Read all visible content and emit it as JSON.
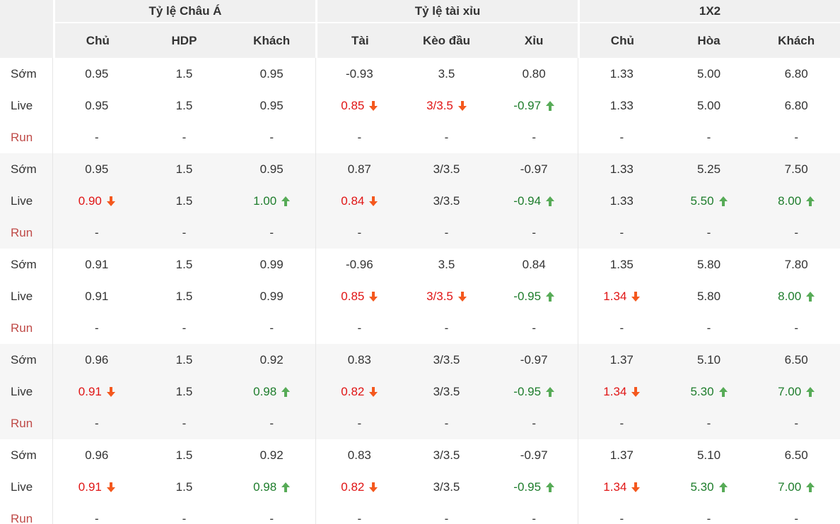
{
  "header": {
    "sections": [
      {
        "title": "Tỷ lệ Châu Á",
        "cols": [
          "Chủ",
          "HDP",
          "Khách"
        ]
      },
      {
        "title": "Tỷ lệ tài xỉu",
        "cols": [
          "Tài",
          "Kèo đầu",
          "Xỉu"
        ]
      },
      {
        "title": "1X2",
        "cols": [
          "Chủ",
          "Hòa",
          "Khách"
        ]
      }
    ]
  },
  "colors": {
    "header_bg": "#f0f0f0",
    "stripe_bg": "#f6f6f6",
    "text": "#333333",
    "red": "#e01515",
    "red_arrow": "#f4581e",
    "green": "#1e7d2c",
    "green_arrow": "#57ab57",
    "run_label": "#bf4a47",
    "divider": "#e6e6e6"
  },
  "groups": [
    {
      "rows": [
        {
          "label": "Sớm",
          "cells": [
            {
              "v": "0.95"
            },
            {
              "v": "1.5"
            },
            {
              "v": "0.95"
            },
            {
              "v": "-0.93"
            },
            {
              "v": "3.5"
            },
            {
              "v": "0.80"
            },
            {
              "v": "1.33"
            },
            {
              "v": "5.00"
            },
            {
              "v": "6.80"
            }
          ]
        },
        {
          "label": "Live",
          "cells": [
            {
              "v": "0.95"
            },
            {
              "v": "1.5"
            },
            {
              "v": "0.95"
            },
            {
              "v": "0.85",
              "c": "red",
              "a": "down"
            },
            {
              "v": "3/3.5",
              "c": "red",
              "a": "down"
            },
            {
              "v": "-0.97",
              "c": "green",
              "a": "up"
            },
            {
              "v": "1.33"
            },
            {
              "v": "5.00"
            },
            {
              "v": "6.80"
            }
          ]
        },
        {
          "label": "Run",
          "cells": [
            {
              "v": "-"
            },
            {
              "v": "-"
            },
            {
              "v": "-"
            },
            {
              "v": "-"
            },
            {
              "v": "-"
            },
            {
              "v": "-"
            },
            {
              "v": "-"
            },
            {
              "v": "-"
            },
            {
              "v": "-"
            }
          ]
        }
      ]
    },
    {
      "rows": [
        {
          "label": "Sớm",
          "cells": [
            {
              "v": "0.95"
            },
            {
              "v": "1.5"
            },
            {
              "v": "0.95"
            },
            {
              "v": "0.87"
            },
            {
              "v": "3/3.5"
            },
            {
              "v": "-0.97"
            },
            {
              "v": "1.33"
            },
            {
              "v": "5.25"
            },
            {
              "v": "7.50"
            }
          ]
        },
        {
          "label": "Live",
          "cells": [
            {
              "v": "0.90",
              "c": "red",
              "a": "down"
            },
            {
              "v": "1.5"
            },
            {
              "v": "1.00",
              "c": "green",
              "a": "up"
            },
            {
              "v": "0.84",
              "c": "red",
              "a": "down"
            },
            {
              "v": "3/3.5"
            },
            {
              "v": "-0.94",
              "c": "green",
              "a": "up"
            },
            {
              "v": "1.33"
            },
            {
              "v": "5.50",
              "c": "green",
              "a": "up"
            },
            {
              "v": "8.00",
              "c": "green",
              "a": "up"
            }
          ]
        },
        {
          "label": "Run",
          "cells": [
            {
              "v": "-"
            },
            {
              "v": "-"
            },
            {
              "v": "-"
            },
            {
              "v": "-"
            },
            {
              "v": "-"
            },
            {
              "v": "-"
            },
            {
              "v": "-"
            },
            {
              "v": "-"
            },
            {
              "v": "-"
            }
          ]
        }
      ]
    },
    {
      "rows": [
        {
          "label": "Sớm",
          "cells": [
            {
              "v": "0.91"
            },
            {
              "v": "1.5"
            },
            {
              "v": "0.99"
            },
            {
              "v": "-0.96"
            },
            {
              "v": "3.5"
            },
            {
              "v": "0.84"
            },
            {
              "v": "1.35"
            },
            {
              "v": "5.80"
            },
            {
              "v": "7.80"
            }
          ]
        },
        {
          "label": "Live",
          "cells": [
            {
              "v": "0.91"
            },
            {
              "v": "1.5"
            },
            {
              "v": "0.99"
            },
            {
              "v": "0.85",
              "c": "red",
              "a": "down"
            },
            {
              "v": "3/3.5",
              "c": "red",
              "a": "down"
            },
            {
              "v": "-0.95",
              "c": "green",
              "a": "up"
            },
            {
              "v": "1.34",
              "c": "red",
              "a": "down"
            },
            {
              "v": "5.80"
            },
            {
              "v": "8.00",
              "c": "green",
              "a": "up"
            }
          ]
        },
        {
          "label": "Run",
          "cells": [
            {
              "v": "-"
            },
            {
              "v": "-"
            },
            {
              "v": "-"
            },
            {
              "v": "-"
            },
            {
              "v": "-"
            },
            {
              "v": "-"
            },
            {
              "v": "-"
            },
            {
              "v": "-"
            },
            {
              "v": "-"
            }
          ]
        }
      ]
    },
    {
      "rows": [
        {
          "label": "Sớm",
          "cells": [
            {
              "v": "0.96"
            },
            {
              "v": "1.5"
            },
            {
              "v": "0.92"
            },
            {
              "v": "0.83"
            },
            {
              "v": "3/3.5"
            },
            {
              "v": "-0.97"
            },
            {
              "v": "1.37"
            },
            {
              "v": "5.10"
            },
            {
              "v": "6.50"
            }
          ]
        },
        {
          "label": "Live",
          "cells": [
            {
              "v": "0.91",
              "c": "red",
              "a": "down"
            },
            {
              "v": "1.5"
            },
            {
              "v": "0.98",
              "c": "green",
              "a": "up"
            },
            {
              "v": "0.82",
              "c": "red",
              "a": "down"
            },
            {
              "v": "3/3.5"
            },
            {
              "v": "-0.95",
              "c": "green",
              "a": "up"
            },
            {
              "v": "1.34",
              "c": "red",
              "a": "down"
            },
            {
              "v": "5.30",
              "c": "green",
              "a": "up"
            },
            {
              "v": "7.00",
              "c": "green",
              "a": "up"
            }
          ]
        },
        {
          "label": "Run",
          "cells": [
            {
              "v": "-"
            },
            {
              "v": "-"
            },
            {
              "v": "-"
            },
            {
              "v": "-"
            },
            {
              "v": "-"
            },
            {
              "v": "-"
            },
            {
              "v": "-"
            },
            {
              "v": "-"
            },
            {
              "v": "-"
            }
          ]
        }
      ]
    },
    {
      "rows": [
        {
          "label": "Sớm",
          "cells": [
            {
              "v": "0.96"
            },
            {
              "v": "1.5"
            },
            {
              "v": "0.92"
            },
            {
              "v": "0.83"
            },
            {
              "v": "3/3.5"
            },
            {
              "v": "-0.97"
            },
            {
              "v": "1.37"
            },
            {
              "v": "5.10"
            },
            {
              "v": "6.50"
            }
          ]
        },
        {
          "label": "Live",
          "cells": [
            {
              "v": "0.91",
              "c": "red",
              "a": "down"
            },
            {
              "v": "1.5"
            },
            {
              "v": "0.98",
              "c": "green",
              "a": "up"
            },
            {
              "v": "0.82",
              "c": "red",
              "a": "down"
            },
            {
              "v": "3/3.5"
            },
            {
              "v": "-0.95",
              "c": "green",
              "a": "up"
            },
            {
              "v": "1.34",
              "c": "red",
              "a": "down"
            },
            {
              "v": "5.30",
              "c": "green",
              "a": "up"
            },
            {
              "v": "7.00",
              "c": "green",
              "a": "up"
            }
          ]
        },
        {
          "label": "Run",
          "cells": [
            {
              "v": "-"
            },
            {
              "v": "-"
            },
            {
              "v": "-"
            },
            {
              "v": "-"
            },
            {
              "v": "-"
            },
            {
              "v": "-"
            },
            {
              "v": "-"
            },
            {
              "v": "-"
            },
            {
              "v": "-"
            }
          ]
        }
      ]
    }
  ]
}
